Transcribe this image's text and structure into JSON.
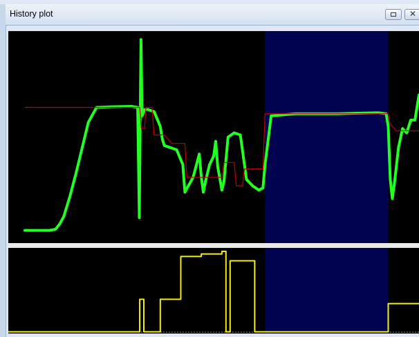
{
  "window": {
    "title": "History plot"
  },
  "icons": {
    "restore": "restore-icon",
    "close": "close-icon"
  },
  "colors": {
    "plot_bg": "#000000",
    "highlight": "#00034f",
    "measured": "#22ff22",
    "setpoint": "#c00000",
    "output": "#f5f000",
    "divider": "#e8e8e8"
  },
  "chart_data": [
    {
      "type": "line",
      "title": "",
      "xlabel": "",
      "ylabel": "",
      "xlim": [
        0,
        100
      ],
      "ylim": [
        0,
        100
      ],
      "grid": false,
      "highlight_region": [
        62.5,
        92.5
      ],
      "series": [
        {
          "role": "measured",
          "x": [
            4,
            10,
            11.5,
            12.5,
            13.5,
            15,
            16.5,
            18,
            19.5,
            21.5,
            25,
            30,
            31.5,
            31.9,
            32.3,
            32.6,
            33.2,
            34,
            35.5,
            37,
            37.5,
            38,
            39.5,
            41,
            42.5,
            43,
            45,
            46.5,
            47,
            47.5,
            48,
            49,
            50,
            50.5,
            51,
            52,
            52.5,
            53.5,
            55,
            56.5,
            58,
            59.5,
            61,
            62,
            62.5,
            64,
            70,
            80,
            90,
            92,
            92.5,
            93,
            93.5,
            94,
            95,
            96,
            97,
            98,
            99,
            100
          ],
          "y": [
            6,
            6,
            6.5,
            9,
            12.5,
            22,
            33,
            45,
            57,
            64,
            64.3,
            64.5,
            64,
            12,
            96,
            60,
            63,
            63,
            62,
            55,
            49,
            46,
            45,
            44,
            37,
            24,
            31,
            42,
            31,
            24,
            29,
            37,
            41,
            48,
            36,
            25,
            29,
            50,
            52,
            51,
            30,
            27,
            25,
            26,
            37,
            60,
            61,
            61,
            61.5,
            61,
            55,
            30,
            21,
            28,
            45,
            54,
            52,
            58,
            58,
            70
          ]
        },
        {
          "role": "setpoint",
          "x": [
            4,
            32,
            32.4,
            33.2,
            33.5,
            35,
            35.5,
            38,
            39.8,
            43,
            43.5,
            52,
            52.5,
            55,
            55.5,
            57,
            57.5,
            62,
            62.5,
            92.5,
            93,
            94.5,
            100
          ],
          "y": [
            64,
            64,
            54,
            54,
            64,
            64,
            51,
            51,
            47,
            47,
            31,
            31,
            38,
            38,
            27,
            27,
            35,
            35,
            61,
            61,
            56,
            53,
            53
          ]
        }
      ]
    },
    {
      "type": "line",
      "title": "",
      "xlabel": "",
      "ylabel": "",
      "xlim": [
        0,
        100
      ],
      "ylim": [
        0,
        100
      ],
      "grid": false,
      "highlight_region": [
        62.5,
        92.5
      ],
      "series": [
        {
          "role": "output",
          "x": [
            0,
            32,
            32,
            33,
            33,
            37,
            37,
            42,
            42,
            47,
            47,
            52,
            52,
            53,
            53,
            54,
            54,
            60,
            60,
            62.5,
            62.5,
            92.5,
            92.5,
            96,
            96,
            100
          ],
          "y": [
            2,
            2,
            40,
            40,
            2,
            2,
            40,
            40,
            90,
            90,
            93,
            93,
            96,
            96,
            2,
            2,
            85,
            85,
            2,
            2,
            2,
            2,
            35,
            35,
            35,
            35
          ]
        }
      ]
    }
  ]
}
